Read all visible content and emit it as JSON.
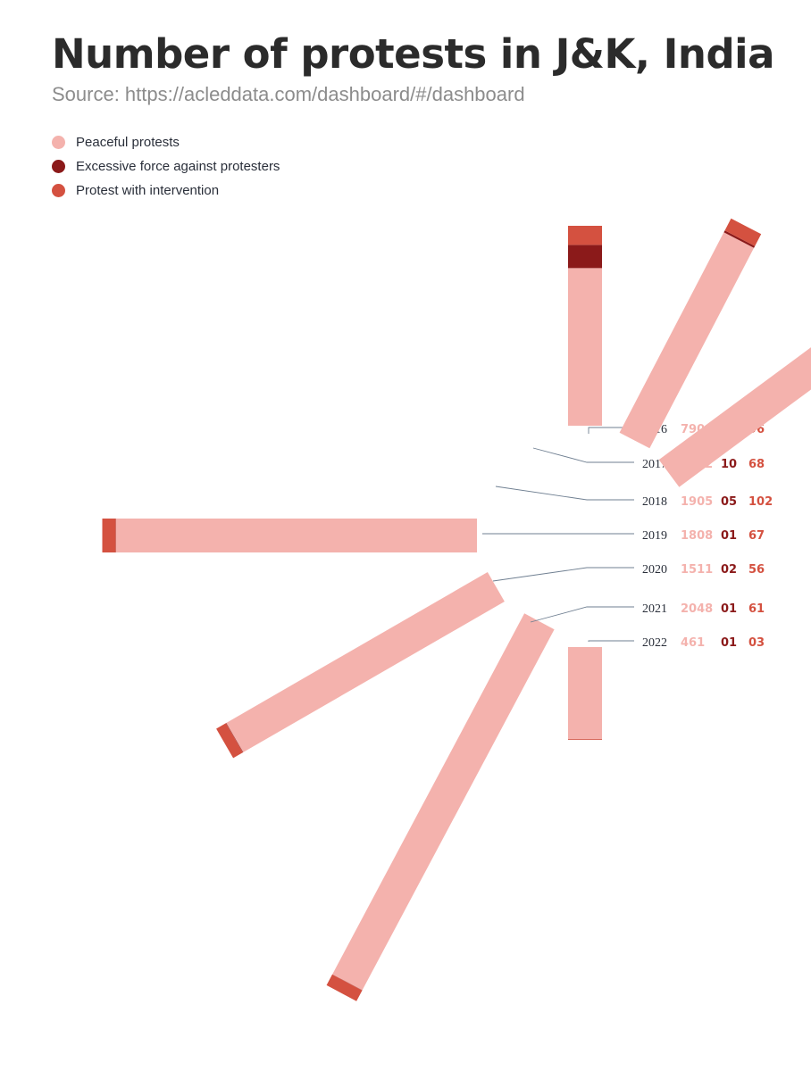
{
  "chart_data": {
    "type": "bar",
    "layout": "radial-fan",
    "title": "Number of protests in J&K, India",
    "subtitle": "Source: https://acleddata.com/dashboard/#/dashboard",
    "categories": [
      "2016",
      "2017",
      "2018",
      "2019",
      "2020",
      "2021",
      "2022"
    ],
    "series": [
      {
        "name": "Peaceful protests",
        "color": "#f4b2ad",
        "values": [
          790,
          1132,
          1905,
          1808,
          1511,
          2048,
          461
        ],
        "labels": [
          "790",
          "1132",
          "1905",
          "1808",
          "1511",
          "2048",
          "461"
        ]
      },
      {
        "name": "Excessive force against protesters",
        "color": "#8b1a1a",
        "values": [
          116,
          10,
          5,
          1,
          2,
          1,
          1
        ],
        "labels": [
          "116",
          "10",
          "05",
          "01",
          "02",
          "01",
          "01"
        ]
      },
      {
        "name": "Protest with intervention",
        "color": "#d45140",
        "values": [
          96,
          68,
          102,
          67,
          56,
          61,
          3
        ],
        "labels": [
          "96",
          "68",
          "102",
          "67",
          "56",
          "61",
          "03"
        ]
      }
    ],
    "legend_position": "top-left",
    "grid": false
  }
}
